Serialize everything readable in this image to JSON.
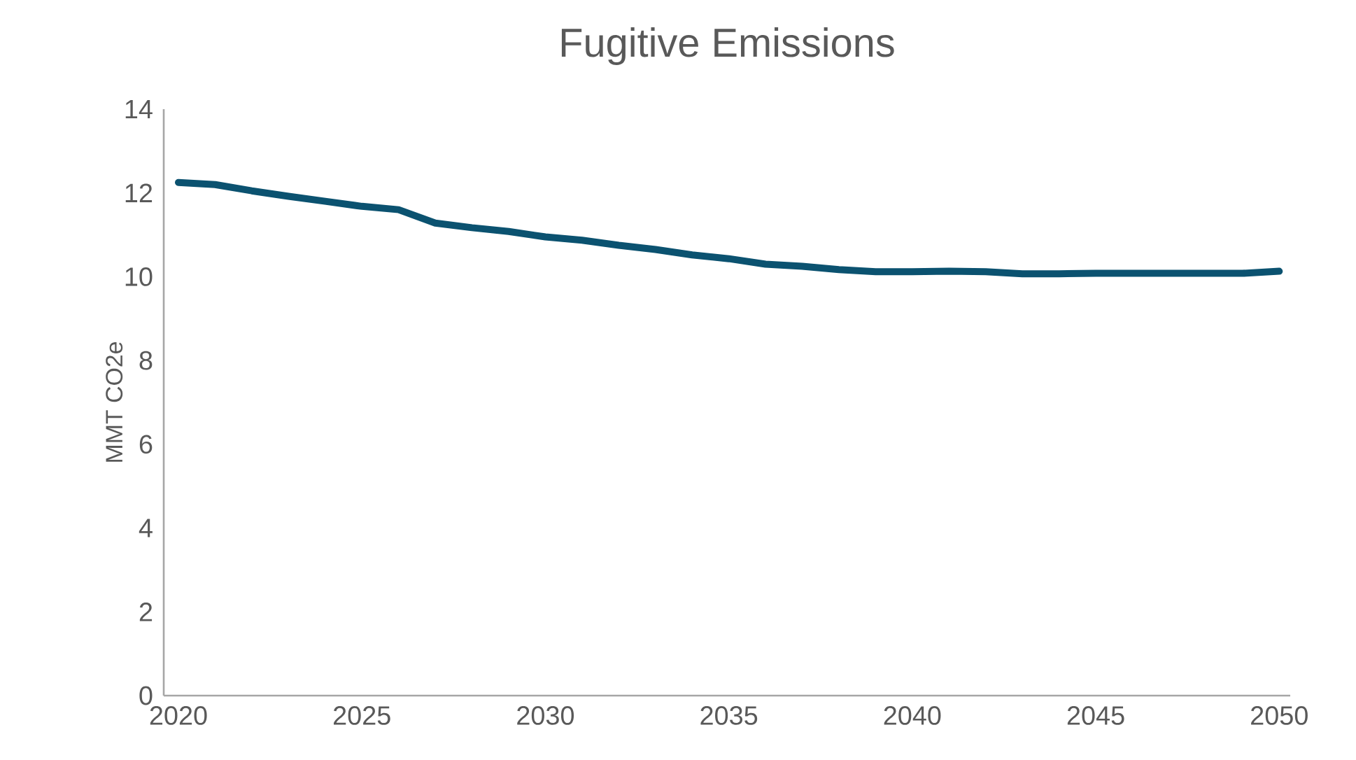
{
  "chart_data": {
    "type": "line",
    "title": "Fugitive Emissions",
    "ylabel": "MMT CO2e",
    "x": [
      2020,
      2021,
      2022,
      2023,
      2024,
      2025,
      2026,
      2027,
      2028,
      2029,
      2030,
      2031,
      2032,
      2033,
      2034,
      2035,
      2036,
      2037,
      2038,
      2039,
      2040,
      2041,
      2042,
      2043,
      2044,
      2045,
      2046,
      2047,
      2048,
      2049,
      2050
    ],
    "series": [
      {
        "color": "#0b5270",
        "values": [
          12.25,
          12.2,
          12.05,
          11.92,
          11.8,
          11.68,
          11.6,
          11.28,
          11.17,
          11.08,
          10.95,
          10.87,
          10.75,
          10.65,
          10.52,
          10.43,
          10.3,
          10.25,
          10.17,
          10.12,
          10.12,
          10.13,
          10.12,
          10.07,
          10.07,
          10.08,
          10.08,
          10.08,
          10.08,
          10.08,
          10.13
        ]
      }
    ],
    "xlim": [
      2019.6,
      2050.3
    ],
    "xticks": [
      2020,
      2025,
      2030,
      2035,
      2040,
      2045,
      2050
    ],
    "ylim": [
      0,
      14
    ],
    "yticks": [
      0,
      2,
      4,
      6,
      8,
      10,
      12,
      14
    ],
    "grid": false,
    "legend": false,
    "marker": "none",
    "line_style": "solid"
  }
}
